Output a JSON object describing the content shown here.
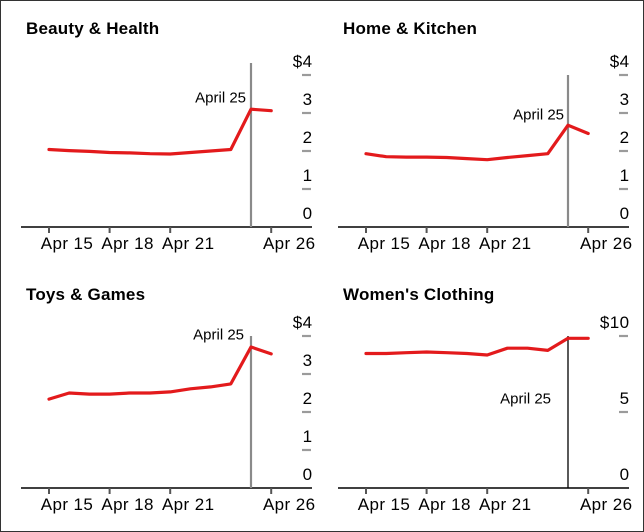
{
  "colors": {
    "series_red": "#e31a1c",
    "event_line_gray": "#8a8a8a",
    "event_line_black": "#000000",
    "axis_line": "#000000",
    "minor_tick_gray": "#9b9b9b",
    "text": "#000000",
    "background": "#ffffff"
  },
  "chart_data": [
    {
      "id": "beauty-health",
      "type": "line",
      "title": "Beauty & Health",
      "x_tick_labels": [
        "Apr 15",
        "Apr 18",
        "Apr 21",
        "Apr 26"
      ],
      "x_tick_days": [
        15,
        18,
        21,
        26
      ],
      "x_days": [
        15,
        16,
        17,
        18,
        19,
        20,
        21,
        22,
        23,
        24,
        25,
        26
      ],
      "values": [
        2.04,
        2.01,
        1.99,
        1.96,
        1.95,
        1.93,
        1.92,
        1.96,
        2.0,
        2.04,
        3.1,
        3.06
      ],
      "ylabels": [
        "$4",
        "3",
        "2",
        "1",
        "0"
      ],
      "yvalues": [
        4,
        3,
        2,
        1,
        0
      ],
      "ylim": [
        0,
        4
      ],
      "annotation": {
        "label": "April 25",
        "day": 25,
        "line_color": "#8a8a8a"
      }
    },
    {
      "id": "home-kitchen",
      "type": "line",
      "title": "Home & Kitchen",
      "x_tick_labels": [
        "Apr 15",
        "Apr 18",
        "Apr 21",
        "Apr 26"
      ],
      "x_tick_days": [
        15,
        18,
        21,
        26
      ],
      "x_days": [
        15,
        16,
        17,
        18,
        19,
        20,
        21,
        22,
        23,
        24,
        25,
        26
      ],
      "values": [
        1.93,
        1.85,
        1.84,
        1.84,
        1.83,
        1.8,
        1.77,
        1.83,
        1.88,
        1.93,
        2.68,
        2.46
      ],
      "ylabels": [
        "$4",
        "3",
        "2",
        "1",
        "0"
      ],
      "yvalues": [
        4,
        3,
        2,
        1,
        0
      ],
      "ylim": [
        0,
        4
      ],
      "annotation": {
        "label": "April 25",
        "day": 25,
        "line_color": "#8a8a8a"
      }
    },
    {
      "id": "toys-games",
      "type": "line",
      "title": "Toys & Games",
      "x_tick_labels": [
        "Apr 15",
        "Apr 18",
        "Apr 21",
        "Apr 26"
      ],
      "x_tick_days": [
        15,
        18,
        21,
        26
      ],
      "x_days": [
        15,
        16,
        17,
        18,
        19,
        20,
        21,
        22,
        23,
        24,
        25,
        26
      ],
      "values": [
        2.34,
        2.5,
        2.47,
        2.47,
        2.5,
        2.5,
        2.53,
        2.61,
        2.66,
        2.74,
        3.71,
        3.53
      ],
      "ylabels": [
        "$4",
        "3",
        "2",
        "1",
        "0"
      ],
      "yvalues": [
        4,
        3,
        2,
        1,
        0
      ],
      "ylim": [
        0,
        4
      ],
      "annotation": {
        "label": "April 25",
        "day": 25,
        "line_color": "#8a8a8a"
      }
    },
    {
      "id": "womens-clothing",
      "type": "line",
      "title": "Women's Clothing",
      "x_tick_labels": [
        "Apr 15",
        "Apr 18",
        "Apr 21",
        "Apr 26"
      ],
      "x_tick_days": [
        15,
        18,
        21,
        26
      ],
      "x_days": [
        15,
        16,
        17,
        18,
        19,
        20,
        21,
        22,
        23,
        24,
        25,
        26
      ],
      "values": [
        8.85,
        8.85,
        8.9,
        8.95,
        8.9,
        8.85,
        8.75,
        9.2,
        9.2,
        9.05,
        9.85,
        9.85
      ],
      "ylabels": [
        "$10",
        "5",
        "0"
      ],
      "yvalues": [
        10,
        5,
        0
      ],
      "ylim": [
        0,
        10
      ],
      "annotation": {
        "label": "April 25",
        "day": 25,
        "line_color": "#000000"
      }
    }
  ]
}
